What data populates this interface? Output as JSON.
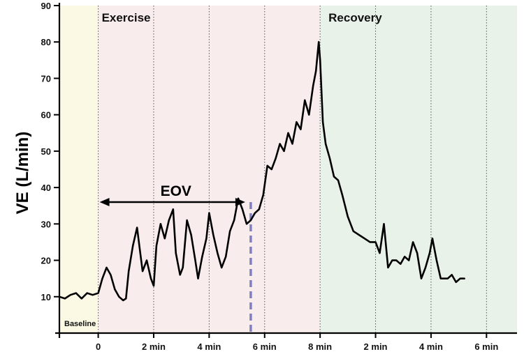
{
  "chart_data": {
    "type": "line",
    "title": "",
    "ylabel": "VE (L/min)",
    "ylim": [
      0,
      90
    ],
    "yticks": [
      10,
      20,
      30,
      40,
      50,
      60,
      70,
      80,
      90
    ],
    "xticks": [
      {
        "x": 0,
        "label": "0",
        "phase": "exercise"
      },
      {
        "x": 2,
        "label": "2 min",
        "phase": "exercise"
      },
      {
        "x": 4,
        "label": "4 min",
        "phase": "exercise"
      },
      {
        "x": 6,
        "label": "6 min",
        "phase": "exercise"
      },
      {
        "x": 8,
        "label": "8 min",
        "phase": "exercise"
      },
      {
        "x": 10,
        "label": "2 min",
        "phase": "recovery"
      },
      {
        "x": 12,
        "label": "4 min",
        "phase": "recovery"
      },
      {
        "x": 14,
        "label": "6 min",
        "phase": "recovery"
      }
    ],
    "phases": [
      {
        "name": "Baseline",
        "start": -1.4,
        "end": 0,
        "color": "#fbf8e3"
      },
      {
        "name": "Exercise",
        "start": 0,
        "end": 8,
        "color": "#f8ecec"
      },
      {
        "name": "Recovery",
        "start": 8,
        "end": 15.1,
        "color": "#e9f2e9"
      }
    ],
    "annotations": {
      "eov_label": "EOV",
      "eov_start": 0,
      "eov_end": 5.5,
      "eov_y": 36,
      "eov_dashed_x": 5.5,
      "dashed_color": "#7f7fc4"
    },
    "recovery_tick_color": "#2e6b2e",
    "series": [
      {
        "color": "#000000",
        "x": [
          -1.4,
          -1.2,
          -1.0,
          -0.8,
          -0.6,
          -0.4,
          -0.2,
          0.0,
          0.15,
          0.3,
          0.45,
          0.6,
          0.75,
          0.9,
          1.0,
          1.1,
          1.25,
          1.4,
          1.5,
          1.6,
          1.75,
          1.9,
          2.0,
          2.1,
          2.25,
          2.4,
          2.55,
          2.7,
          2.8,
          2.95,
          3.05,
          3.2,
          3.35,
          3.5,
          3.6,
          3.75,
          3.9,
          4.0,
          4.15,
          4.3,
          4.45,
          4.6,
          4.75,
          4.9,
          5.05,
          5.2,
          5.35,
          5.5,
          5.65,
          5.8,
          5.95,
          6.1,
          6.25,
          6.4,
          6.55,
          6.7,
          6.85,
          7.0,
          7.15,
          7.3,
          7.45,
          7.6,
          7.75,
          7.85,
          7.95,
          8.0,
          8.1,
          8.2,
          8.35,
          8.5,
          8.65,
          8.8,
          9.0,
          9.2,
          9.4,
          9.6,
          9.8,
          10.0,
          10.15,
          10.3,
          10.45,
          10.6,
          10.75,
          10.9,
          11.05,
          11.2,
          11.35,
          11.5,
          11.65,
          11.8,
          11.95,
          12.05,
          12.2,
          12.35,
          12.5,
          12.6,
          12.75,
          12.9,
          13.05,
          13.2
        ],
        "y": [
          10,
          9.5,
          10.5,
          11,
          9.5,
          11,
          10.5,
          11,
          15,
          18,
          16,
          12,
          10,
          9,
          9.5,
          17,
          24,
          29,
          23,
          17,
          20,
          15,
          13,
          24,
          30,
          26,
          31,
          34,
          22,
          16,
          18,
          31,
          27,
          20,
          15,
          21,
          26,
          33,
          27,
          22,
          18,
          21,
          28,
          31,
          37,
          34,
          30,
          31,
          33,
          34,
          38,
          46,
          45,
          48,
          52,
          50,
          55,
          52,
          58,
          56,
          64,
          60,
          68,
          72,
          80,
          75,
          58,
          52,
          48,
          43,
          42,
          38,
          32,
          28,
          27,
          26,
          25,
          25,
          22,
          30,
          18,
          20,
          20,
          19,
          21,
          20,
          25,
          22,
          15,
          18,
          22,
          26,
          20,
          15,
          15,
          15,
          16,
          14,
          15,
          15
        ]
      }
    ]
  }
}
